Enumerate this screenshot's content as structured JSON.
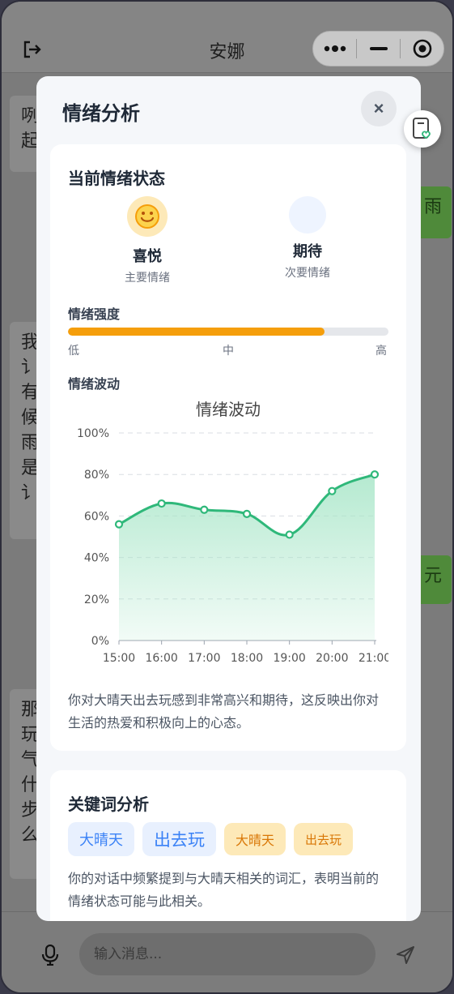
{
  "app": {
    "title": "安娜",
    "input_placeholder": "输入消息..."
  },
  "chat": {
    "bubbles": [
      {
        "text": "咧\n起"
      },
      {
        "text": "雨"
      },
      {
        "text": "我\n讠\n有\n候\n雨\n是\n讠"
      },
      {
        "text": "元"
      },
      {
        "text": "那\n玩\n气\n什\n步\n么"
      }
    ]
  },
  "modal": {
    "title": "情绪分析",
    "close_label": "×",
    "current": {
      "title": "当前情绪状态",
      "primary": {
        "name": "喜悦",
        "label": "主要情绪",
        "icon": "smiley-face-icon"
      },
      "secondary": {
        "name": "期待",
        "label": "次要情绪"
      }
    },
    "intensity": {
      "title": "情绪强度",
      "value_percent": 80,
      "labels": {
        "low": "低",
        "mid": "中",
        "high": "高"
      }
    },
    "fluctuation": {
      "title": "情绪波动",
      "description": "你对大晴天出去玩感到非常高兴和期待，这反映出你对生活的热爱和积极向上的心态。"
    },
    "keywords": {
      "title": "关键词分析",
      "tags": [
        {
          "text": "大晴天",
          "style": "blue"
        },
        {
          "text": "出去玩",
          "style": "blue"
        },
        {
          "text": "大晴天",
          "style": "orange"
        },
        {
          "text": "出去玩",
          "style": "orange"
        }
      ],
      "description": "你的对话中频繁提到与大晴天相关的词汇，表明当前的情绪状态可能与此相关。"
    }
  },
  "chart_data": {
    "type": "area",
    "title": "情绪波动",
    "x": [
      "15:00",
      "16:00",
      "17:00",
      "18:00",
      "19:00",
      "20:00",
      "21:00"
    ],
    "series": [
      {
        "values": [
          56,
          66,
          63,
          61,
          51,
          72,
          80
        ]
      }
    ],
    "y_ticks": [
      "0%",
      "20%",
      "40%",
      "60%",
      "80%",
      "100%"
    ],
    "ylim": [
      0,
      100
    ],
    "grid": true,
    "colors": {
      "line": "#2fb87a",
      "fill": "#a8e6c8"
    }
  }
}
